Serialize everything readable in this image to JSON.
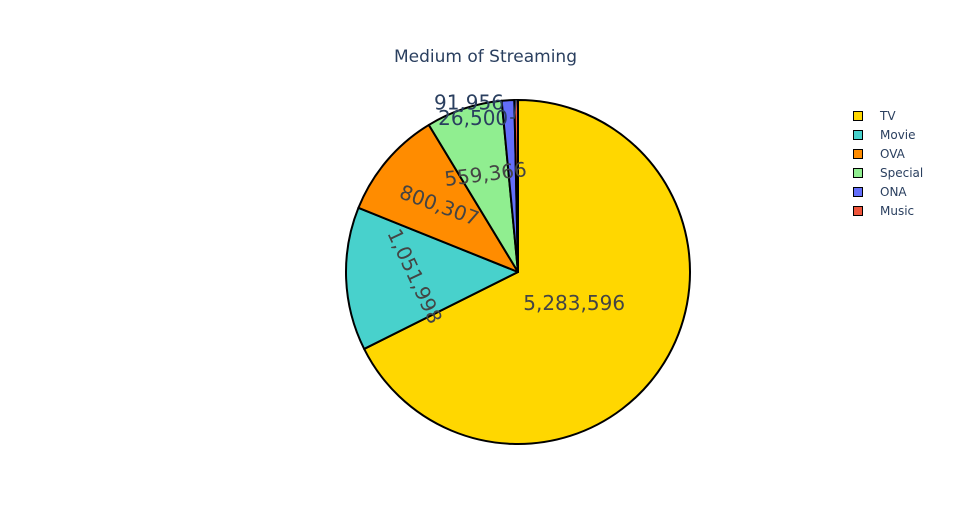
{
  "chart_data": {
    "type": "pie",
    "title": "Medium of Streaming",
    "legend_position": "top-right",
    "slices": [
      {
        "label": "TV",
        "value": 5283596,
        "display": "5,283,596",
        "color": "#FFD700"
      },
      {
        "label": "Movie",
        "value": 1051998,
        "display": "1,051,998",
        "color": "#48D1CC"
      },
      {
        "label": "OVA",
        "value": 800307,
        "display": "800,307",
        "color": "#FF8C00"
      },
      {
        "label": "Special",
        "value": 559366,
        "display": "559,366",
        "color": "#90EE90"
      },
      {
        "label": "ONA",
        "value": 91956,
        "display": "91,956",
        "color": "#636EFA"
      },
      {
        "label": "Music",
        "value": 26500,
        "display": "26,500",
        "color": "#EF553B"
      }
    ]
  }
}
